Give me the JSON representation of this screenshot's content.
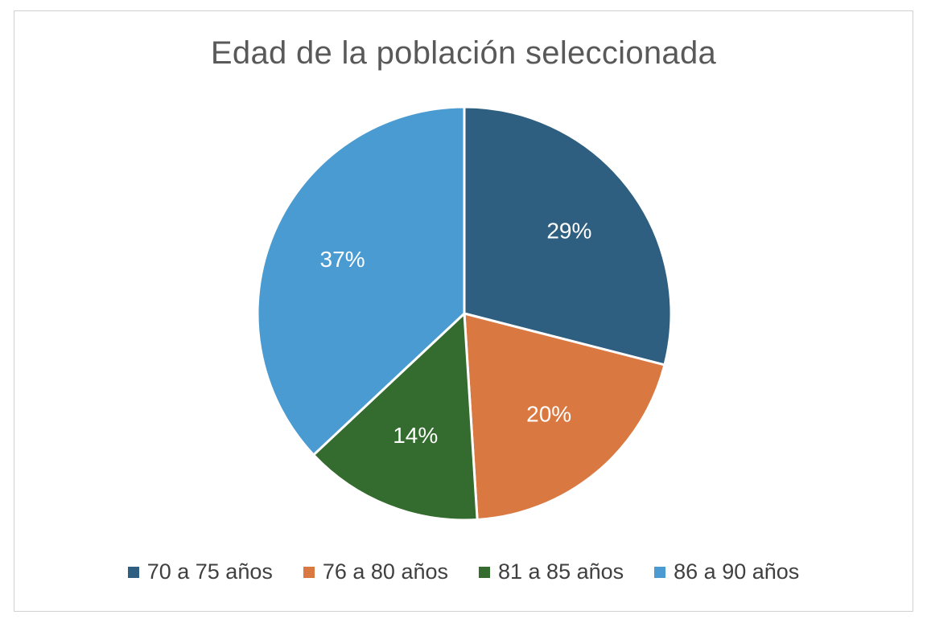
{
  "chart_data": {
    "type": "pie",
    "title": "Edad de la población seleccionada",
    "categories": [
      "70 a 75 años",
      "76 a 80 años",
      "81 a 85 años",
      "86 a 90 años"
    ],
    "values": [
      29,
      20,
      14,
      37
    ],
    "labels": [
      "29%",
      "20%",
      "14%",
      "37%"
    ],
    "colors": [
      "#2e5f80",
      "#d97841",
      "#346b2e",
      "#4a9bd1"
    ],
    "label_color": "#ffffff",
    "legend_placement": "bottom"
  }
}
